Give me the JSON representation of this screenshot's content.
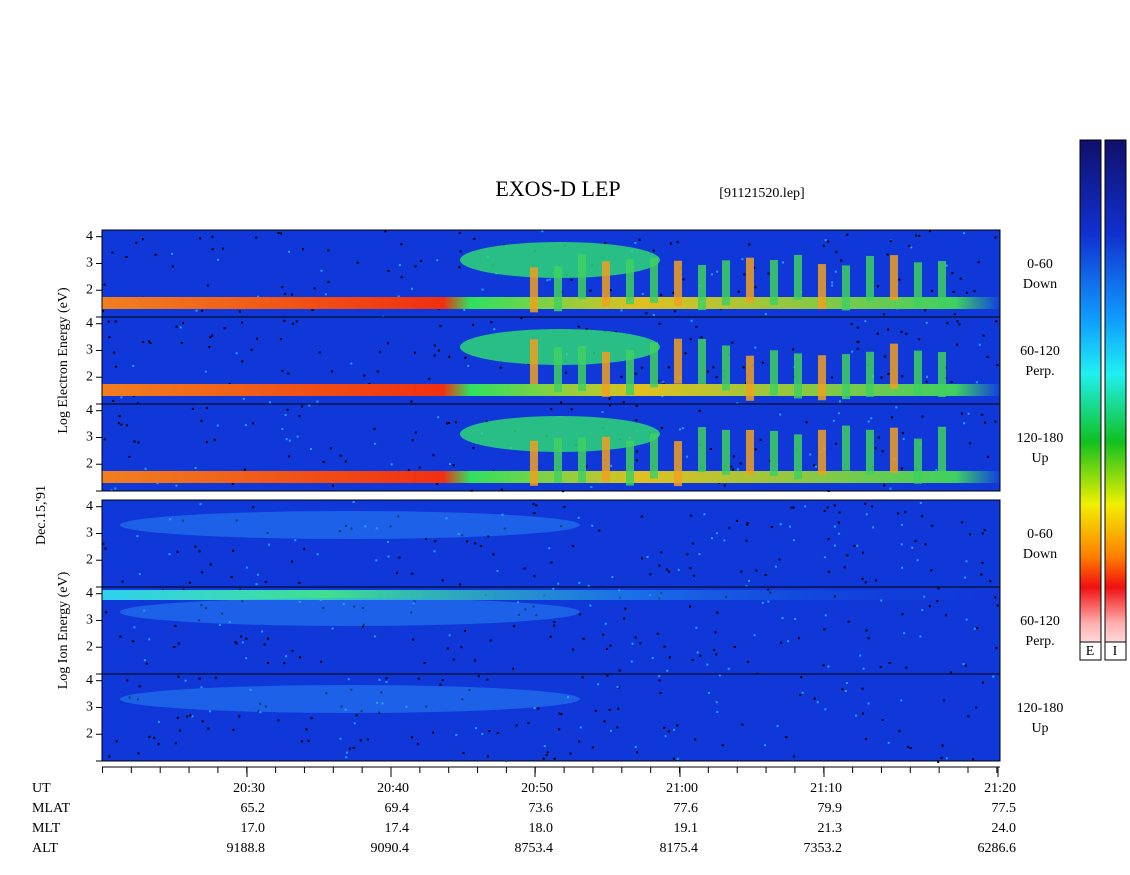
{
  "title": "EXOS-D LEP",
  "file": "[91121520.lep]",
  "date": "Dec.15,'91",
  "ylim": [
    1,
    4.25
  ],
  "yticks": [
    2,
    3,
    4
  ],
  "groups": [
    {
      "label": "Log  Electron  Energy (eV)",
      "panels": [
        {
          "angle": "0-60",
          "direction": "Down"
        },
        {
          "angle": "60-120",
          "direction": "Perp."
        },
        {
          "angle": "120-180",
          "direction": "Up"
        }
      ]
    },
    {
      "label": "Log  Ion  Energy (eV)",
      "panels": [
        {
          "angle": "0-60",
          "direction": "Down"
        },
        {
          "angle": "60-120",
          "direction": "Perp."
        },
        {
          "angle": "120-180",
          "direction": "Up"
        }
      ]
    }
  ],
  "colorbar": [
    "E",
    "I"
  ],
  "ephemeris": {
    "row_labels": [
      "UT",
      "MLAT",
      "MLT",
      "ALT"
    ],
    "ut": [
      "20:30",
      "20:40",
      "20:50",
      "21:00",
      "21:10",
      "21:20"
    ],
    "mlat": [
      "65.2",
      "69.4",
      "73.6",
      "77.6",
      "79.9",
      "77.5"
    ],
    "mlt": [
      "17.0",
      "17.4",
      "18.0",
      "19.1",
      "21.3",
      "24.0"
    ],
    "alt": [
      "9188.8",
      "9090.4",
      "8753.4",
      "8175.4",
      "7353.2",
      "6286.6"
    ]
  }
}
